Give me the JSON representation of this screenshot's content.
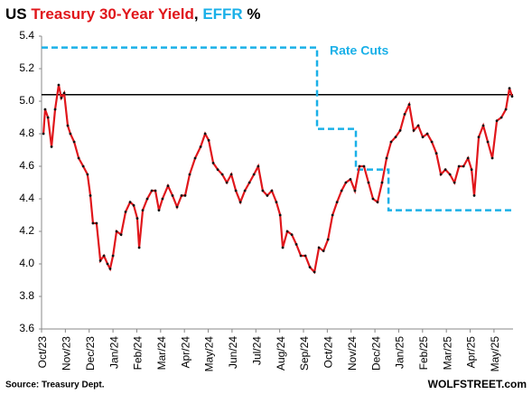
{
  "chart_data": {
    "type": "line",
    "title_parts": [
      {
        "text": "US ",
        "color": "#000000"
      },
      {
        "text": "Treasury 30-Year Yield",
        "color": "#e0161b"
      },
      {
        "text": ", ",
        "color": "#000000"
      },
      {
        "text": "EFFR",
        "color": "#1ab0e8"
      },
      {
        "text": " %",
        "color": "#000000"
      }
    ],
    "annotation": "Rate Cuts",
    "source": "Source: Treasury Dept.",
    "brand": "WOLFSTREET.com",
    "xlim": [
      0,
      19.8
    ],
    "xticks": [
      {
        "value": 0,
        "label": "Oct/23"
      },
      {
        "value": 1,
        "label": "Nov/23"
      },
      {
        "value": 2,
        "label": "Dec/23"
      },
      {
        "value": 3,
        "label": "Jan/24"
      },
      {
        "value": 4,
        "label": "Feb/24"
      },
      {
        "value": 5,
        "label": "Mar/24"
      },
      {
        "value": 6,
        "label": "Apr/24"
      },
      {
        "value": 7,
        "label": "May/24"
      },
      {
        "value": 8,
        "label": "Jun/24"
      },
      {
        "value": 9,
        "label": "Jul/24"
      },
      {
        "value": 10,
        "label": "Aug/24"
      },
      {
        "value": 11,
        "label": "Sep/24"
      },
      {
        "value": 12,
        "label": "Oct/24"
      },
      {
        "value": 13,
        "label": "Nov/24"
      },
      {
        "value": 14,
        "label": "Dec/24"
      },
      {
        "value": 15,
        "label": "Jan/25"
      },
      {
        "value": 16,
        "label": "Feb/25"
      },
      {
        "value": 17,
        "label": "Mar/25"
      },
      {
        "value": 18,
        "label": "Apr/25"
      },
      {
        "value": 19,
        "label": "May/25"
      }
    ],
    "ylim": [
      3.6,
      5.4
    ],
    "yticks": [
      3.6,
      3.8,
      {
        "value": 4,
        "label": "4.0"
      },
      4.2,
      4.4,
      4.6,
      4.8,
      {
        "value": 5,
        "label": "5.0"
      },
      5.2,
      5.4
    ],
    "hline": {
      "value": 5.04,
      "color": "#000000"
    },
    "series": [
      {
        "name": "Treasury 30-Year Yield",
        "color": "#e0161b",
        "marker_color": "#111111",
        "dash": false,
        "x": [
          0.08,
          0.15,
          0.27,
          0.42,
          0.57,
          0.72,
          0.83,
          0.95,
          1.1,
          1.21,
          1.37,
          1.56,
          1.75,
          1.93,
          2.05,
          2.16,
          2.31,
          2.47,
          2.62,
          2.77,
          2.88,
          3.0,
          3.15,
          3.34,
          3.53,
          3.72,
          3.87,
          4.02,
          4.1,
          4.25,
          4.44,
          4.63,
          4.78,
          4.93,
          5.08,
          5.31,
          5.5,
          5.69,
          5.88,
          6.03,
          6.22,
          6.45,
          6.68,
          6.87,
          7.02,
          7.21,
          7.4,
          7.59,
          7.78,
          7.97,
          8.16,
          8.35,
          8.54,
          8.73,
          8.92,
          9.1,
          9.29,
          9.48,
          9.67,
          9.86,
          10.02,
          10.13,
          10.32,
          10.51,
          10.7,
          10.89,
          11.08,
          11.27,
          11.46,
          11.65,
          11.84,
          12.03,
          12.22,
          12.41,
          12.6,
          12.78,
          12.97,
          13.16,
          13.35,
          13.54,
          13.73,
          13.92,
          14.11,
          14.3,
          14.49,
          14.68,
          14.87,
          15.06,
          15.25,
          15.44,
          15.63,
          15.82,
          16.01,
          16.2,
          16.39,
          16.58,
          16.77,
          16.96,
          17.15,
          17.34,
          17.53,
          17.72,
          17.91,
          18.06,
          18.17,
          18.36,
          18.55,
          18.74,
          18.93,
          19.12,
          19.31,
          19.5,
          19.65,
          19.76
        ],
        "values": [
          4.8,
          4.95,
          4.9,
          4.72,
          4.95,
          5.1,
          5.02,
          5.05,
          4.85,
          4.8,
          4.75,
          4.65,
          4.6,
          4.55,
          4.42,
          4.25,
          4.25,
          4.02,
          4.05,
          4.0,
          3.97,
          4.05,
          4.2,
          4.18,
          4.32,
          4.38,
          4.36,
          4.28,
          4.1,
          4.33,
          4.4,
          4.45,
          4.45,
          4.33,
          4.4,
          4.48,
          4.42,
          4.35,
          4.42,
          4.42,
          4.55,
          4.65,
          4.72,
          4.8,
          4.76,
          4.62,
          4.58,
          4.55,
          4.5,
          4.55,
          4.45,
          4.38,
          4.45,
          4.5,
          4.55,
          4.6,
          4.45,
          4.42,
          4.45,
          4.38,
          4.3,
          4.1,
          4.2,
          4.18,
          4.12,
          4.05,
          4.05,
          3.98,
          3.95,
          4.1,
          4.08,
          4.15,
          4.3,
          4.38,
          4.45,
          4.5,
          4.52,
          4.45,
          4.6,
          4.6,
          4.5,
          4.4,
          4.38,
          4.5,
          4.65,
          4.75,
          4.78,
          4.82,
          4.92,
          4.98,
          4.82,
          4.85,
          4.78,
          4.8,
          4.75,
          4.68,
          4.55,
          4.58,
          4.55,
          4.5,
          4.6,
          4.6,
          4.65,
          4.58,
          4.42,
          4.78,
          4.85,
          4.75,
          4.65,
          4.88,
          4.9,
          4.95,
          5.08,
          5.03
        ]
      },
      {
        "name": "EFFR",
        "color": "#1ab0e8",
        "dash": true,
        "x": [
          0,
          11.57,
          11.57,
          13.2,
          13.2,
          14.57,
          14.57,
          19.8
        ],
        "values": [
          5.33,
          5.33,
          4.83,
          4.83,
          4.58,
          4.58,
          4.33,
          4.33
        ]
      }
    ]
  }
}
